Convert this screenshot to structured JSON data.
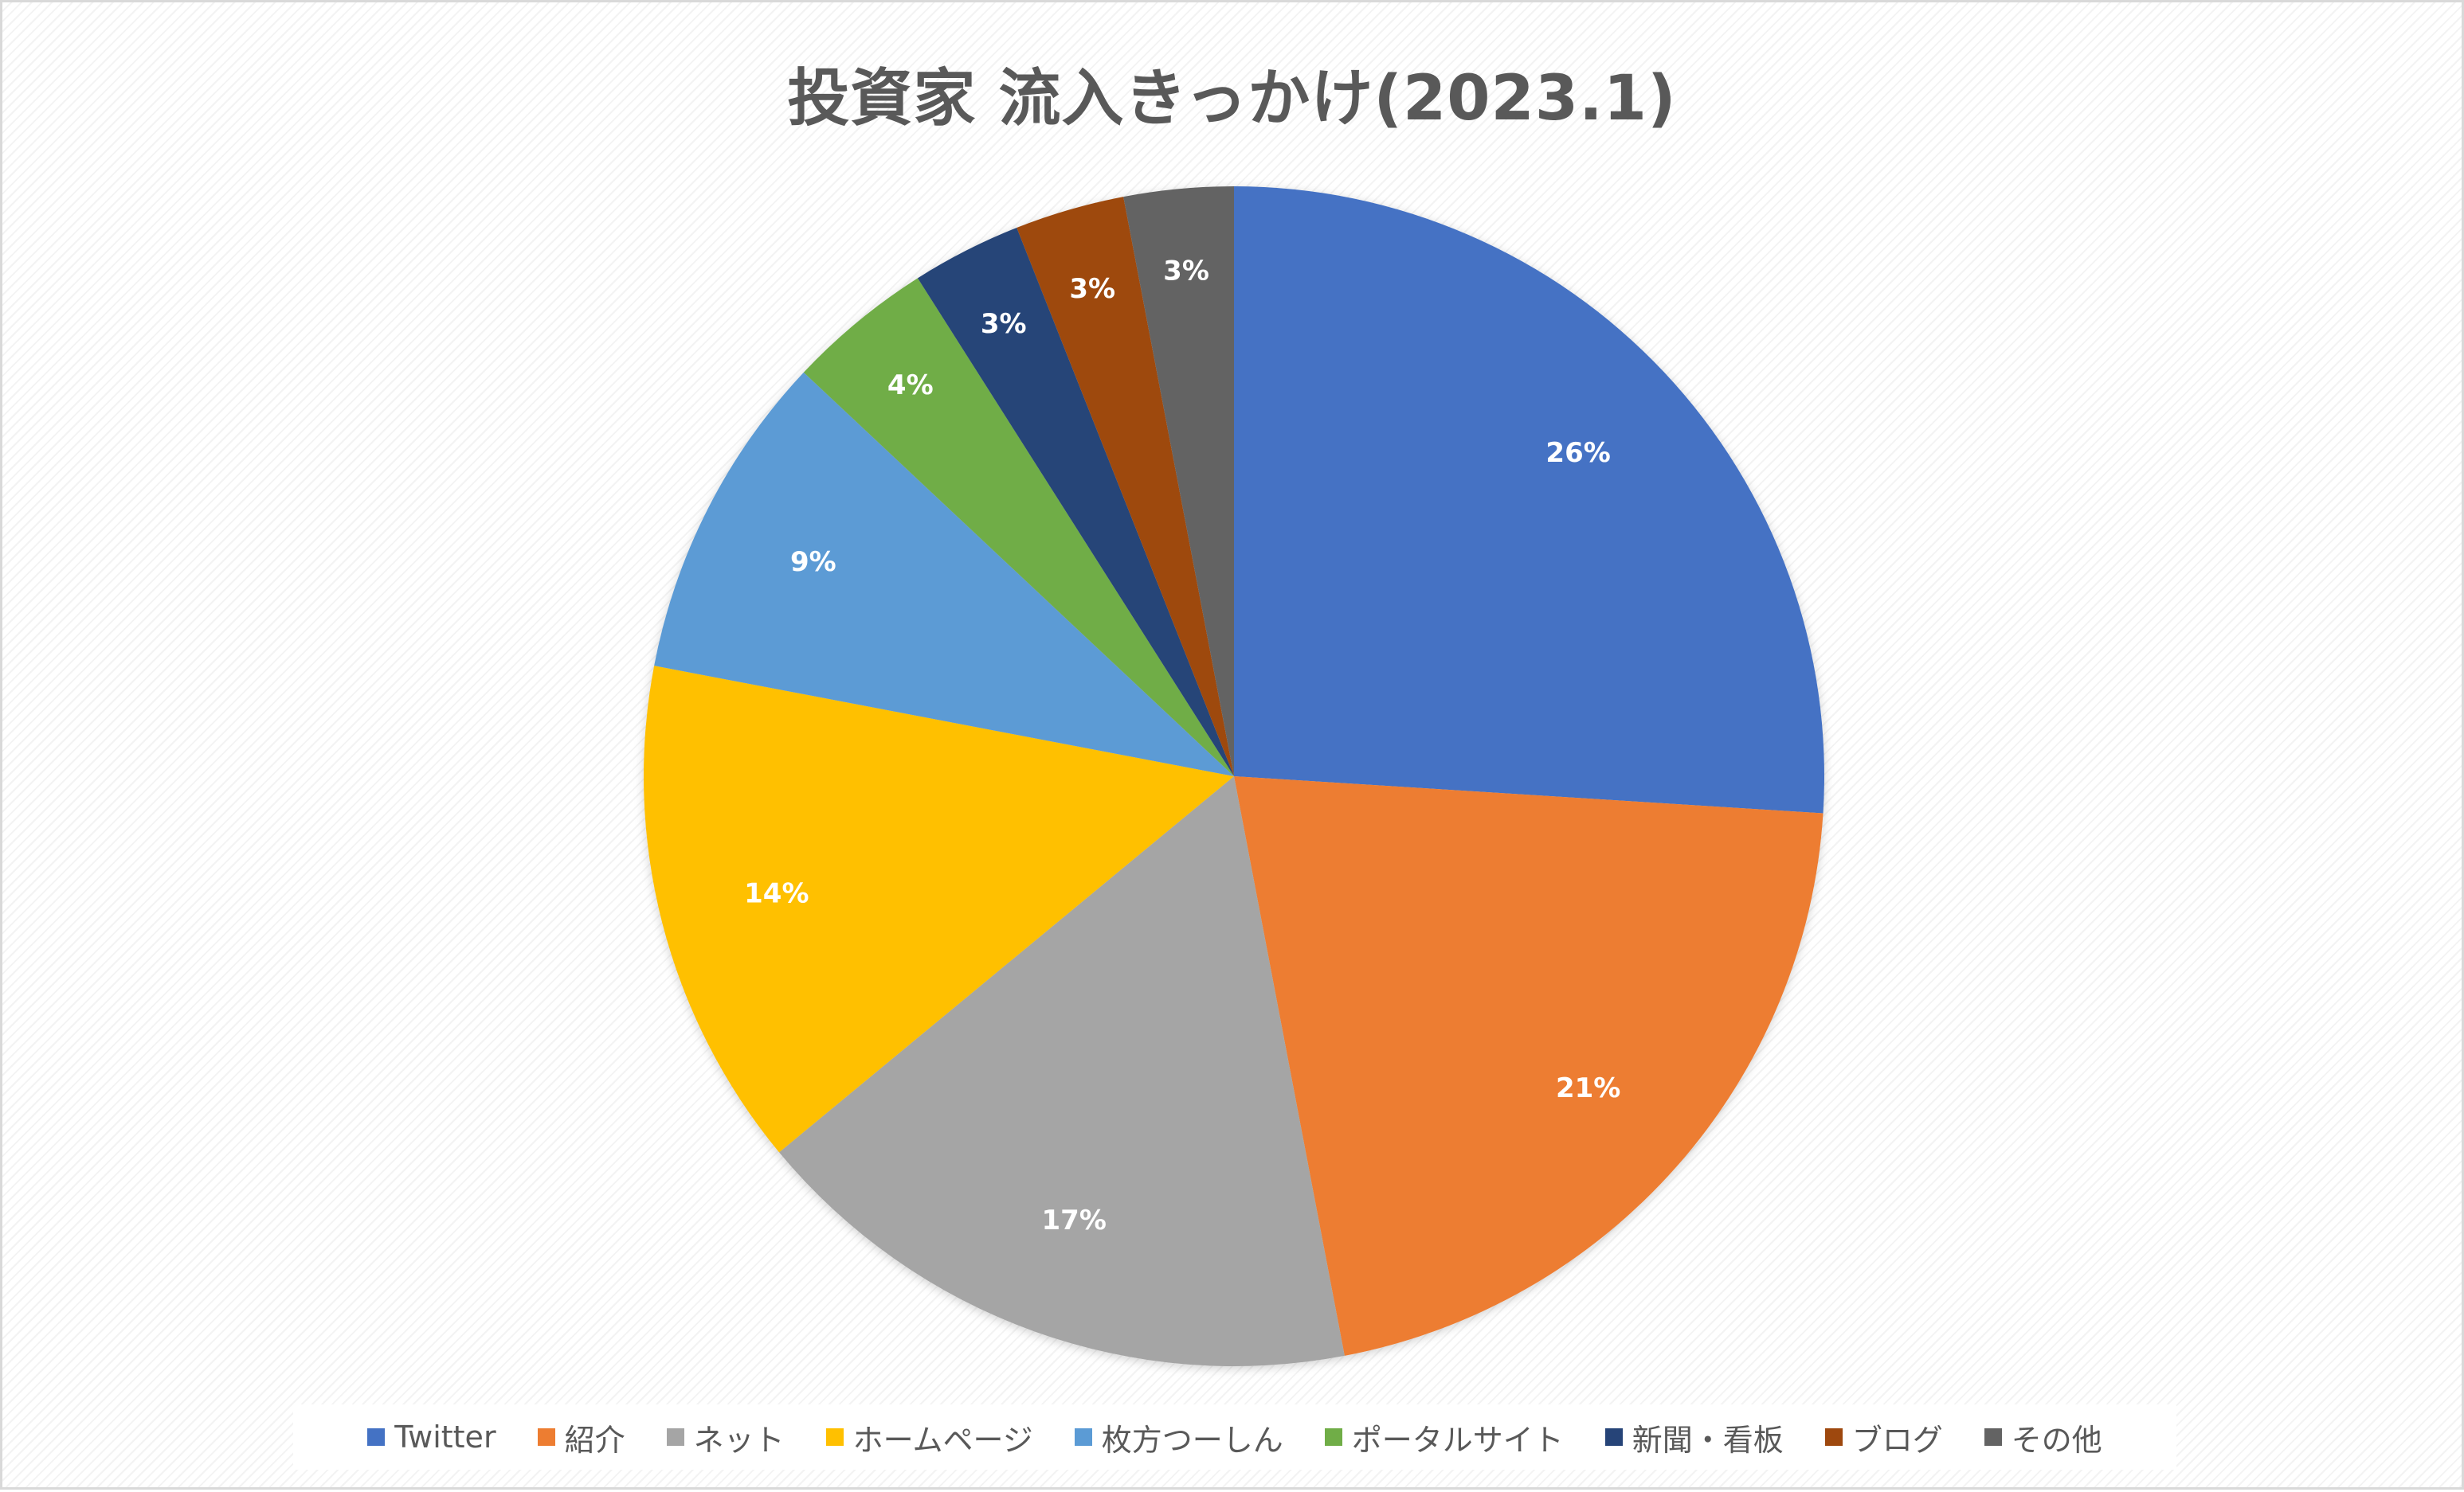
{
  "chart_data": {
    "type": "pie",
    "title": "投資家 流入きっかけ(2023.1)",
    "slices": [
      {
        "label": "Twitter",
        "value": 26,
        "display": "26%",
        "color": "#4472C4"
      },
      {
        "label": "紹介",
        "value": 21,
        "display": "21%",
        "color": "#ED7D31"
      },
      {
        "label": "ネット",
        "value": 17,
        "display": "17%",
        "color": "#A5A5A5"
      },
      {
        "label": "ホームページ",
        "value": 14,
        "display": "14%",
        "color": "#FFC000"
      },
      {
        "label": "枚方つーしん",
        "value": 9,
        "display": "9%",
        "color": "#5B9BD5"
      },
      {
        "label": "ポータルサイト",
        "value": 4,
        "display": "4%",
        "color": "#70AD47"
      },
      {
        "label": "新聞・看板",
        "value": 3,
        "display": "3%",
        "color": "#264478"
      },
      {
        "label": "ブログ",
        "value": 3,
        "display": "3%",
        "color": "#9E480E"
      },
      {
        "label": "その他",
        "value": 3,
        "display": "3%",
        "color": "#636363"
      }
    ],
    "start_angle_deg": 0,
    "direction": "clockwise",
    "legend_position": "bottom",
    "data_labels": "inside"
  },
  "colors": {
    "title": "#595959",
    "legend_text": "#595959",
    "label_text": "#FFFFFF"
  }
}
